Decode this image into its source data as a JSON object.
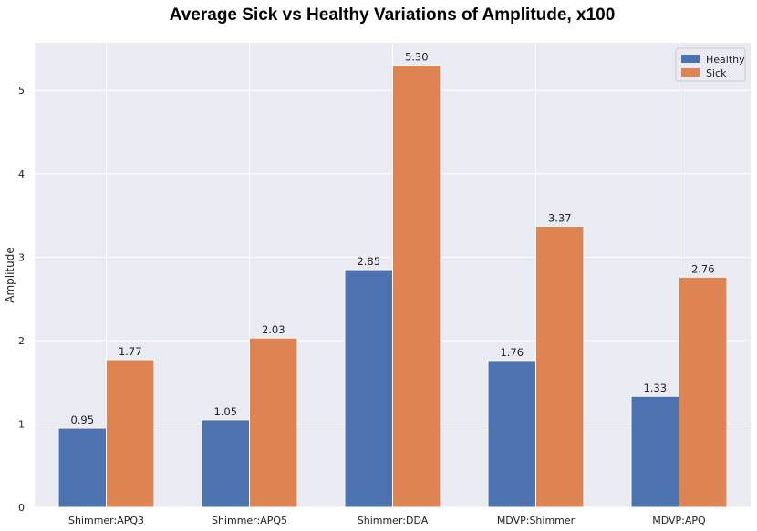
{
  "chart_data": {
    "type": "bar",
    "title": "Average Sick vs Healthy Variations of Amplitude, x100",
    "xlabel": "",
    "ylabel": "Amplitude",
    "categories": [
      "Shimmer:APQ3",
      "Shimmer:APQ5",
      "Shimmer:DDA",
      "MDVP:Shimmer",
      "MDVP:APQ"
    ],
    "series": [
      {
        "name": "Healthy",
        "values": [
          0.95,
          1.05,
          2.85,
          1.76,
          1.33
        ],
        "labels": [
          "0.95",
          "1.05",
          "2.85",
          "1.76",
          "1.33"
        ],
        "color": "#4c72b0"
      },
      {
        "name": "Sick",
        "values": [
          1.77,
          2.03,
          5.3,
          3.37,
          2.76
        ],
        "labels": [
          "1.77",
          "2.03",
          "5.30",
          "3.37",
          "2.76"
        ],
        "color": "#dd8452"
      }
    ],
    "ylim": [
      0,
      5.57
    ],
    "yticks": [
      0,
      1,
      2,
      3,
      4,
      5
    ],
    "grid": true,
    "background": "#eaeaf2",
    "legend_position": "top-right"
  }
}
